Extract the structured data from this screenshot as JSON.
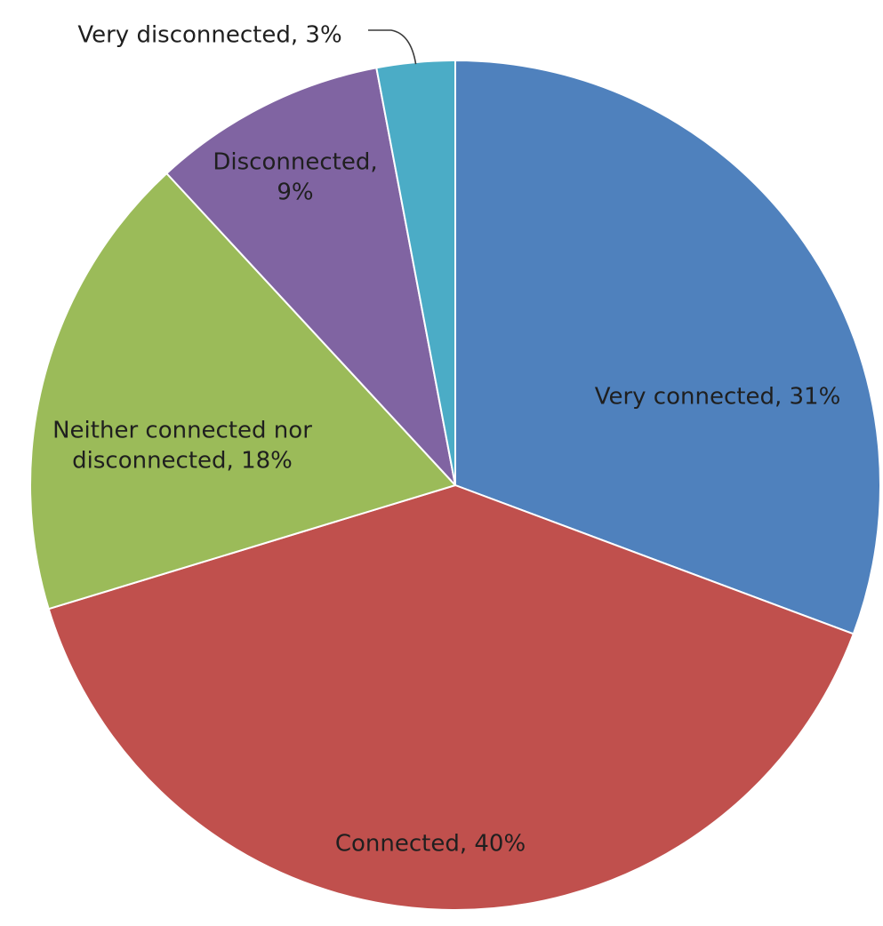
{
  "chart_data": {
    "type": "pie",
    "start": "12 o'clock",
    "direction": "clockwise",
    "slices": [
      {
        "label": "Very connected",
        "value": 31,
        "display": "Very connected, 31%",
        "lines": [
          "Very connected, 31%"
        ],
        "color": "#4F81BD"
      },
      {
        "label": "Connected",
        "value": 40,
        "display": "Connected, 40%",
        "lines": [
          "Connected, 40%"
        ],
        "color": "#C0504D"
      },
      {
        "label": "Neither connected nor disconnected",
        "value": 18,
        "display": "Neither connected nor disconnected, 18%",
        "lines": [
          "Neither connected nor",
          "disconnected, 18%"
        ],
        "color": "#9BBB59"
      },
      {
        "label": "Disconnected",
        "value": 9,
        "display": "Disconnected, 9%",
        "lines": [
          "Disconnected,",
          "9%"
        ],
        "color": "#8064A2"
      },
      {
        "label": "Very disconnected",
        "value": 3,
        "display": "Very disconnected, 3%",
        "lines": [
          "Very disconnected, 3%"
        ],
        "color": "#4BACC6"
      }
    ]
  }
}
